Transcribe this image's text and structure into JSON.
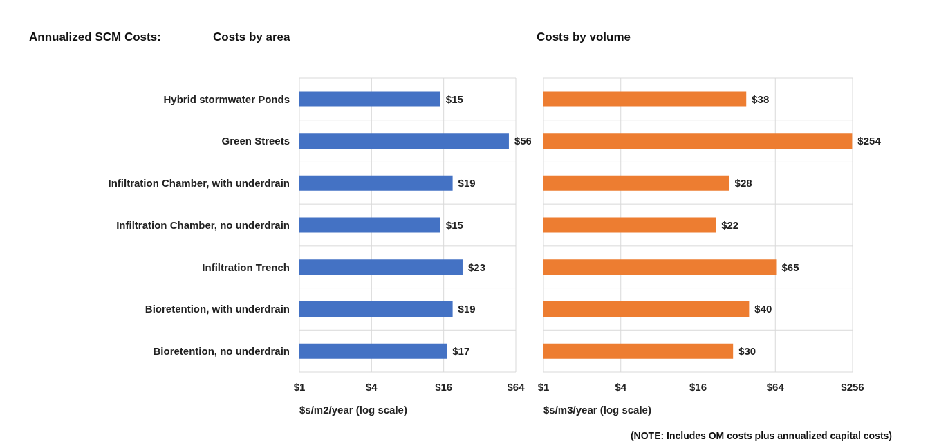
{
  "chart_data": [
    {
      "type": "bar",
      "orientation": "horizontal",
      "title": "Annualized SCM Costs:",
      "subtitle": "Costs by area",
      "xlabel": "$s/m2/year (log scale)",
      "categories": [
        "Hybrid stormwater Ponds",
        "Green Streets",
        "Infiltration Chamber, with underdrain",
        "Infiltration Chamber, no underdrain",
        "Infiltration Trench",
        "Bioretention, with underdrain",
        "Bioretention, no underdrain"
      ],
      "series": [
        {
          "color": "#4472c4",
          "values": [
            15,
            56,
            19,
            15,
            23,
            19,
            17
          ],
          "value_labels": [
            "$15",
            "$56",
            "$19",
            "$15",
            "$23",
            "$19",
            "$17"
          ]
        }
      ],
      "log": "x",
      "xlim": [
        1,
        64
      ],
      "xticks": [
        {
          "value": 1,
          "label": "$1"
        },
        {
          "value": 4,
          "label": "$4"
        },
        {
          "value": 16,
          "label": "$16"
        },
        {
          "value": 64,
          "label": "$64"
        }
      ],
      "grid": true
    },
    {
      "type": "bar",
      "orientation": "horizontal",
      "title": "Costs by volume",
      "xlabel": "$s/m3/year (log scale)",
      "categories": [
        null,
        null,
        null,
        null,
        null,
        null,
        null
      ],
      "series": [
        {
          "color": "#ed7d31",
          "values": [
            38,
            254,
            28,
            22,
            65,
            40,
            30
          ],
          "value_labels": [
            "$38",
            "$254",
            "$28",
            "$22",
            "$65",
            "$40",
            "$30"
          ]
        }
      ],
      "log": "x",
      "xlim": [
        1,
        256
      ],
      "xticks": [
        {
          "value": 1,
          "label": "$1"
        },
        {
          "value": 4,
          "label": "$4"
        },
        {
          "value": 16,
          "label": "$16"
        },
        {
          "value": 64,
          "label": "$64"
        },
        {
          "value": 256,
          "label": "$256"
        }
      ],
      "grid": true,
      "annotations": [
        "(NOTE: Includes OM costs plus annualized capital costs)"
      ]
    }
  ]
}
